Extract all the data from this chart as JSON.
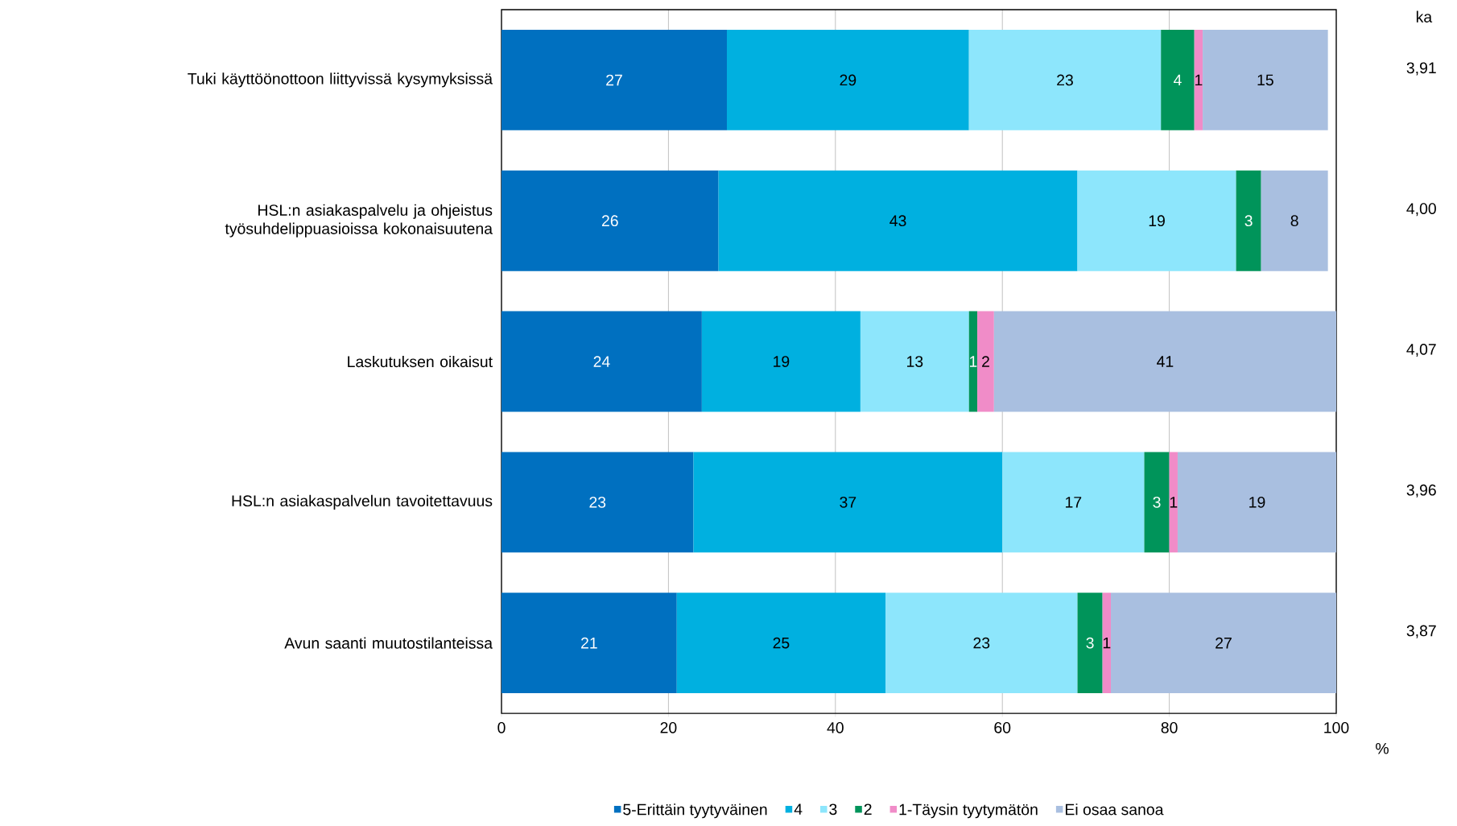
{
  "chart_data": {
    "type": "bar",
    "orientation": "horizontal",
    "stacked": true,
    "data_labels": true,
    "grid": "x",
    "legend": "bottom",
    "xlabel": "%",
    "categories": [
      "Tuki käyttöönottoon liittyvissä kysymyksissä",
      "HSL:n asiakaspalvelu ja ohjeistus työsuhdelippuasioissa kokonaisuutena",
      "Laskutuksen oikaisut",
      "HSL:n asiakaspalvelun tavoitettavuus",
      "Avun saanti muutostilanteissa"
    ],
    "series": [
      {
        "name": "5-Erittäin tyytyväinen",
        "color": "#0070c0",
        "values": [
          27,
          26,
          24,
          23,
          21
        ]
      },
      {
        "name": "4",
        "color": "#00b0e0",
        "values": [
          29,
          43,
          19,
          37,
          25
        ]
      },
      {
        "name": "3",
        "color": "#8de6fc",
        "values": [
          23,
          19,
          13,
          17,
          23
        ]
      },
      {
        "name": "2",
        "color": "#00945a",
        "values": [
          4,
          3,
          1,
          3,
          3
        ]
      },
      {
        "name": "1-Täysin tyytymätön",
        "color": "#f08cc8",
        "values": [
          1,
          null,
          2,
          1,
          1
        ]
      },
      {
        "name": "Ei osaa sanoa",
        "color": "#a9bfe0",
        "values": [
          15,
          8,
          41,
          19,
          27
        ]
      }
    ],
    "xlim": [
      0,
      100
    ],
    "xticks": [
      0,
      20,
      40,
      60,
      80,
      100
    ],
    "annotations": [
      "ka",
      "3,91",
      "4,00",
      "4,07",
      "3,96",
      "3,87"
    ]
  }
}
